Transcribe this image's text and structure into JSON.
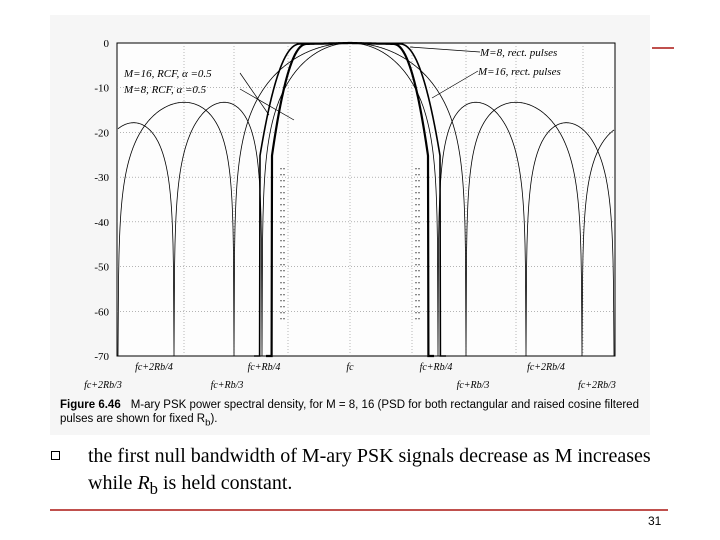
{
  "slide": {
    "accent_color": "#c0504d",
    "bullet_text_main": "the first null bandwidth of M-ary PSK signals decrease as M increases while ",
    "bullet_text_var": "R",
    "bullet_text_sub": "b",
    "bullet_text_end": " is held constant.",
    "page_number": "31"
  },
  "figure": {
    "caption_label": "Figure 6.46",
    "caption_text": "M-ary PSK power spectral density, for M = 8, 16 (PSD for both rectangular and raised cosine filtered pulses are shown for fixed R",
    "caption_sub": "b",
    "caption_end": ")."
  },
  "chart_data": {
    "type": "line",
    "title": "",
    "xlabel": "",
    "ylabel": "",
    "ylim": [
      -70,
      0
    ],
    "yticks": [
      0,
      -10,
      -20,
      -30,
      -40,
      -50,
      -60,
      -70
    ],
    "grid": true,
    "xtick_labels_top": [
      "fc+2Rb/4",
      "fc+Rb/4",
      "fc",
      "fc+Rb/4",
      "fc+2Rb/4"
    ],
    "xtick_labels_bottom": [
      "fc+2Rb/3",
      "fc+Rb/3",
      "fc+Rb/3",
      "fc+2Rb/3"
    ],
    "series": [
      {
        "name": "M=8, rect. pulses",
        "style": "thin"
      },
      {
        "name": "M=16, rect. pulses",
        "style": "thin"
      },
      {
        "name": "M=16, RCF, α =0.5",
        "style": "bold"
      },
      {
        "name": "M=8, RCF, α =0.5",
        "style": "bold"
      }
    ],
    "annotations": [
      "M=8, rect. pulses",
      "M=16, rect. pulses",
      "M=16, RCF, α =0.5",
      "M=8, RCF, α =0.5"
    ]
  }
}
